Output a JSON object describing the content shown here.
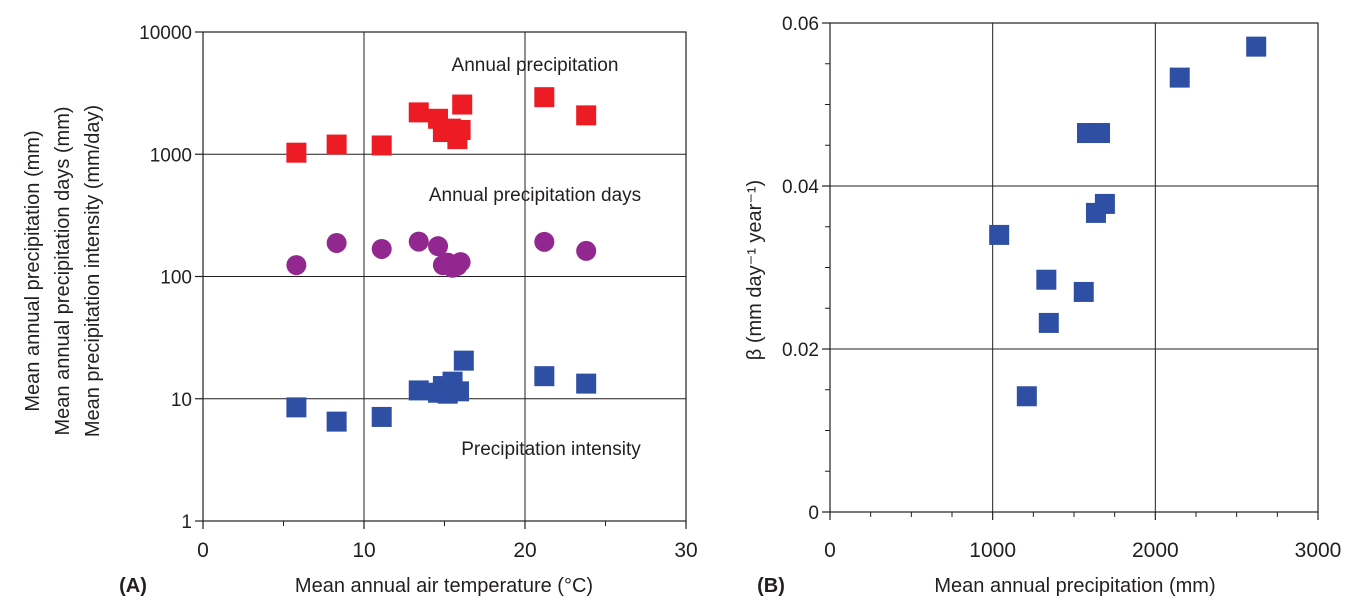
{
  "chart_data": [
    {
      "panel": "(A)",
      "type": "scatter",
      "xlabel": "Mean annual air temperature (°C)",
      "ylabels": [
        "Mean annual precipitation (mm)",
        "Mean annual precipitation days (mm)",
        "Mean precipitation intensity (mm/day)"
      ],
      "xlim": [
        0,
        30
      ],
      "ylim": [
        1,
        10000
      ],
      "yscale": "log",
      "xticks": [
        "0",
        "10",
        "20",
        "30"
      ],
      "yticks": [
        "1",
        "10",
        "100",
        "1000",
        "10000"
      ],
      "grid": true,
      "series": [
        {
          "name": "Annual precipitation",
          "marker": "square",
          "color": "#ed1c24",
          "points": [
            [
              5.8,
              1030
            ],
            [
              8.3,
              1200
            ],
            [
              11.1,
              1180
            ],
            [
              13.4,
              2200
            ],
            [
              14.6,
              1950
            ],
            [
              14.9,
              1520
            ],
            [
              15.4,
              1620
            ],
            [
              15.8,
              1330
            ],
            [
              16.0,
              1580
            ],
            [
              16.1,
              2550
            ],
            [
              21.2,
              2930
            ],
            [
              23.8,
              2080
            ]
          ]
        },
        {
          "name": "Annual precipitation days",
          "marker": "circle",
          "color": "#92278f",
          "points": [
            [
              5.8,
              124
            ],
            [
              8.3,
              188
            ],
            [
              11.1,
              168
            ],
            [
              13.4,
              193
            ],
            [
              14.6,
              177
            ],
            [
              14.9,
              124
            ],
            [
              15.2,
              130
            ],
            [
              15.5,
              118
            ],
            [
              15.8,
              122
            ],
            [
              16.0,
              131
            ],
            [
              21.2,
              192
            ],
            [
              23.8,
              162
            ]
          ]
        },
        {
          "name": "Precipitation intensity",
          "marker": "square",
          "color": "#2e4fa3",
          "points": [
            [
              5.8,
              8.5
            ],
            [
              8.3,
              6.5
            ],
            [
              11.1,
              7.1
            ],
            [
              13.4,
              11.7
            ],
            [
              14.6,
              11.2
            ],
            [
              14.9,
              12.7
            ],
            [
              15.2,
              11.0
            ],
            [
              15.5,
              13.8
            ],
            [
              15.9,
              11.5
            ],
            [
              16.2,
              20.5
            ],
            [
              21.2,
              15.3
            ],
            [
              23.8,
              13.3
            ]
          ]
        }
      ]
    },
    {
      "panel": "(B)",
      "type": "scatter",
      "xlabel": "Mean annual precipitation (mm)",
      "ylabel": "β (mm day⁻¹ year⁻¹)",
      "xlim": [
        0,
        3000
      ],
      "ylim": [
        0,
        0.06
      ],
      "xticks": [
        "0",
        "1000",
        "2000",
        "3000"
      ],
      "yticks": [
        "0",
        "0.02",
        "0.04",
        "0.06"
      ],
      "grid": true,
      "series": [
        {
          "marker": "square",
          "color": "#2e4fa3",
          "points": [
            [
              1040,
              0.034
            ],
            [
              1210,
              0.0142
            ],
            [
              1330,
              0.0285
            ],
            [
              1345,
              0.0232
            ],
            [
              1560,
              0.027
            ],
            [
              1580,
              0.0465
            ],
            [
              1635,
              0.0367
            ],
            [
              1660,
              0.0465
            ],
            [
              1690,
              0.0378
            ],
            [
              2150,
              0.0533
            ],
            [
              2620,
              0.0571
            ]
          ]
        }
      ]
    }
  ]
}
